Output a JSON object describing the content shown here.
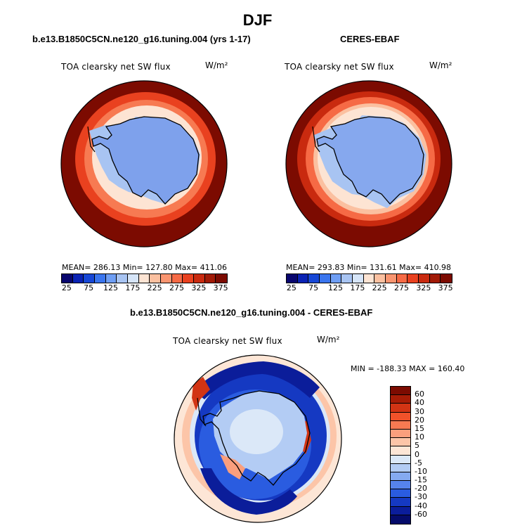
{
  "page": {
    "title": "DJF"
  },
  "panels": [
    {
      "title": "b.e13.B1850C5CN.ne120_g16.tuning.004 (yrs 1-17)",
      "label": "TOA clearsky net SW flux",
      "unit": "W/m²",
      "stats": "MEAN= 286.13   Min= 127.80   Max= 411.06"
    },
    {
      "title": "CERES-EBAF",
      "label": "TOA clearsky net SW flux",
      "unit": "W/m²",
      "stats": "MEAN= 293.83   Min= 131.61   Max= 410.98"
    }
  ],
  "diff_panel": {
    "title": "b.e13.B1850C5CN.ne120_g16.tuning.004 - CERES-EBAF",
    "label": "TOA clearsky net SW flux",
    "unit": "W/m²",
    "stats": "MIN = -188.33  MAX = 160.40"
  },
  "colorbar_abs": {
    "ticks": [
      "25",
      "75",
      "125",
      "175",
      "225",
      "275",
      "325",
      "375"
    ],
    "colors": [
      "#08066e",
      "#0a23b4",
      "#1747d6",
      "#3a75ee",
      "#6e9ef4",
      "#a8c4f2",
      "#d6e5f8",
      "#fde4d3",
      "#fbc0a0",
      "#f99570",
      "#f66a45",
      "#e9411f",
      "#c92a0f",
      "#a11a06",
      "#7c0b01"
    ]
  },
  "colorbar_diff": {
    "ticks": [
      "60",
      "40",
      "30",
      "20",
      "15",
      "10",
      "5",
      "0",
      "-5",
      "-10",
      "-15",
      "-20",
      "-30",
      "-40",
      "-60"
    ],
    "colors": [
      "#7c0b01",
      "#a71c06",
      "#d23414",
      "#f0522a",
      "#f77a52",
      "#fa9f7d",
      "#fcc5a8",
      "#fde6d6",
      "#dbe8f8",
      "#b3ccf4",
      "#85aaf1",
      "#5683ec",
      "#2a5ce0",
      "#1539c2",
      "#0b1d9a",
      "#050b6a"
    ]
  }
}
